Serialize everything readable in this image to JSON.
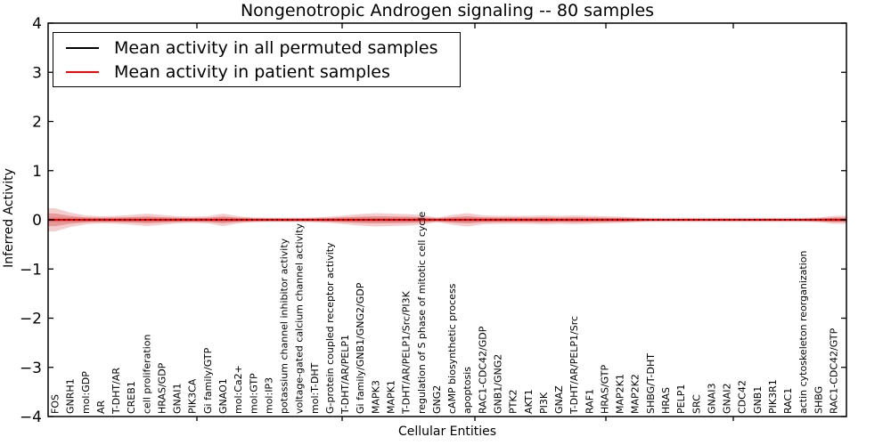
{
  "chart_data": {
    "type": "line",
    "title": "Nongenotropic Androgen signaling -- 80 samples",
    "xlabel": "Cellular Entities",
    "ylabel": "Inferred Activity",
    "ylim": [
      -4,
      4
    ],
    "ytick_labels": [
      "4",
      "3",
      "2",
      "1",
      "0",
      "−1",
      "−2",
      "−3",
      "−4"
    ],
    "grid": false,
    "legend_position": "upper left",
    "legend": [
      {
        "label": "Mean activity in all permuted samples",
        "color": "#000000"
      },
      {
        "label": "Mean activity in patient samples",
        "color": "#ff0000"
      }
    ],
    "categories": [
      "FOS",
      "GNRH1",
      "mol:GDP",
      "AR",
      "T-DHT/AR",
      "CREB1",
      "cell proliferation",
      "HRAS/GDP",
      "GNAI1",
      "PIK3CA",
      "Gi family/GTP",
      "GNAO1",
      "mol:Ca2+",
      "mol:GTP",
      "mol:IP3",
      "potassium channel inhibitor activity",
      "voltage-gated calcium channel activity",
      "mol:T-DHT",
      "G-protein coupled receptor activity",
      "T-DHT/AR/PELP1",
      "Gi family/GNB1/GNG2/GDP",
      "MAPK3",
      "MAPK1",
      "T-DHT/AR/PELP1/Src/PI3K",
      "regulation of S phase of mitotic cell cycle",
      "GNG2",
      "cAMP biosynthetic process",
      "apoptosis",
      "RAC1-CDC42/GDP",
      "GNB1/GNG2",
      "PTK2",
      "AKT1",
      "PI3K",
      "GNAZ",
      "T-DHT/AR/PELP1/Src",
      "RAF1",
      "HRAS/GTP",
      "MAP2K1",
      "MAP2K2",
      "SHBG/T-DHT",
      "HRAS",
      "PELP1",
      "SRC",
      "GNAI3",
      "GNAI2",
      "CDC42",
      "GNB1",
      "PIK3R1",
      "RAC1",
      "actin cytoskeleton reorganization",
      "SHBG",
      "RAC1-CDC42/GTP"
    ],
    "series": [
      {
        "name": "Mean activity in all permuted samples",
        "color": "#000000",
        "style": "dotted",
        "values": [
          0,
          0,
          0,
          0,
          0,
          0,
          0,
          0,
          0,
          0,
          0,
          0,
          0,
          0,
          0,
          0,
          0,
          0,
          0,
          0,
          0,
          0,
          0,
          0,
          0,
          0,
          0,
          0,
          0,
          0,
          0,
          0,
          0,
          0,
          0,
          0,
          0,
          0,
          0,
          0,
          0,
          0,
          0,
          0,
          0,
          0,
          0,
          0,
          0,
          0,
          0,
          0
        ]
      },
      {
        "name": "Mean activity in patient samples",
        "color": "#ff0000",
        "style": "solid",
        "values": [
          0,
          0,
          0,
          0,
          0,
          0,
          0,
          0,
          0,
          0,
          0,
          0,
          0,
          0,
          0,
          0,
          0,
          0,
          0,
          0,
          0,
          0,
          0,
          0,
          0,
          0,
          0,
          0,
          0,
          0,
          0,
          0,
          0,
          0,
          0,
          0,
          0,
          0,
          0,
          0,
          0,
          0,
          0,
          0,
          0,
          0,
          0,
          0,
          0,
          0,
          0,
          0
        ]
      }
    ],
    "patient_band_outer_halfwidth": [
      0.235,
      0.145,
      0.09,
      0.072,
      0.081,
      0.1,
      0.127,
      0.1,
      0.072,
      0.063,
      0.072,
      0.127,
      0.072,
      0.045,
      0.036,
      0.036,
      0.036,
      0.045,
      0.063,
      0.09,
      0.118,
      0.136,
      0.127,
      0.118,
      0.1,
      0.045,
      0.1,
      0.136,
      0.09,
      0.081,
      0.081,
      0.081,
      0.09,
      0.081,
      0.09,
      0.081,
      0.072,
      0.063,
      0.045,
      0.027,
      0.022,
      0.022,
      0.022,
      0.022,
      0.022,
      0.022,
      0.022,
      0.022,
      0.022,
      0.027,
      0.045,
      0.081
    ],
    "patient_band_inner_halfwidth": [
      0.129,
      0.08,
      0.05,
      0.04,
      0.045,
      0.055,
      0.07,
      0.055,
      0.04,
      0.035,
      0.04,
      0.07,
      0.04,
      0.025,
      0.02,
      0.02,
      0.02,
      0.025,
      0.035,
      0.05,
      0.065,
      0.075,
      0.07,
      0.065,
      0.055,
      0.025,
      0.055,
      0.075,
      0.05,
      0.045,
      0.045,
      0.045,
      0.05,
      0.045,
      0.05,
      0.045,
      0.04,
      0.035,
      0.025,
      0.015,
      0.012,
      0.012,
      0.012,
      0.012,
      0.012,
      0.012,
      0.012,
      0.012,
      0.012,
      0.015,
      0.025,
      0.045
    ],
    "permuted_band_halfwidth": 0.045,
    "band_color": "#cc2222",
    "permuted_band_color": "#999999"
  }
}
